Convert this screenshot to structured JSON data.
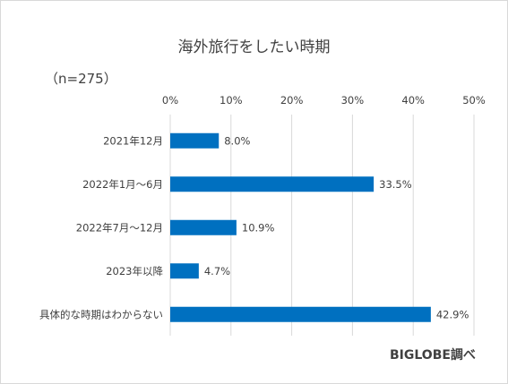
{
  "chart_data": {
    "type": "bar",
    "orientation": "horizontal",
    "title": "海外旅行をしたい時期",
    "subtitle": "（n=275）",
    "source": "BIGLOBE調べ",
    "categories": [
      "2021年12月",
      "2022年1月～6月",
      "2022年7月～12月",
      "2023年以降",
      "具体的な時期はわからない"
    ],
    "values": [
      8.0,
      33.5,
      10.9,
      4.7,
      42.9
    ],
    "data_labels": [
      "8.0%",
      "33.5%",
      "10.9%",
      "4.7%",
      "42.9%"
    ],
    "xlim": [
      0,
      50
    ],
    "xticks": [
      0,
      10,
      20,
      30,
      40,
      50
    ],
    "xtick_labels": [
      "0%",
      "10%",
      "20%",
      "30%",
      "40%",
      "50%"
    ],
    "axis_position": "top",
    "grid": true,
    "legend": "none",
    "bar_color": "#0070c0",
    "grid_color": "#d9d9d9"
  }
}
